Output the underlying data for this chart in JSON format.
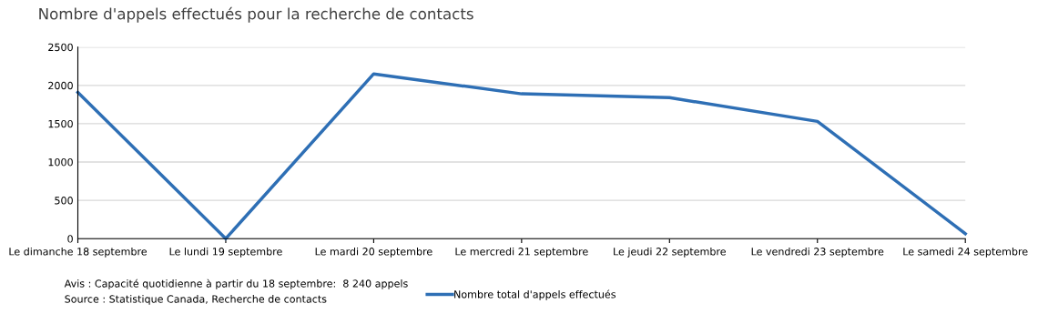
{
  "chart_data": {
    "type": "line",
    "title": "Nombre d'appels effectués pour la recherche de contacts",
    "categories": [
      "Le dimanche 18 septembre",
      "Le lundi 19 septembre",
      "Le mardi 20 septembre",
      "Le mercredi 21 septembre",
      "Le jeudi 22 septembre",
      "Le vendredi 23 septembre",
      "Le samedi 24 septembre"
    ],
    "series": [
      {
        "name": "Nombre total d'appels effectués",
        "color": "#2e6fb5",
        "values": [
          1910,
          0,
          2150,
          1890,
          1840,
          1530,
          65
        ]
      }
    ],
    "ylim": [
      0,
      2500
    ],
    "yticks": [
      0,
      500,
      1000,
      1500,
      2000,
      2500
    ],
    "grid": "y",
    "legend": "bottom",
    "marker": "none",
    "line_style": "solid",
    "annotations": [
      "Avis : Capacité quotidienne à partir du 18 septembre:  8 240 appels",
      "Source : Statistique Canada, Recherche de contacts"
    ]
  }
}
